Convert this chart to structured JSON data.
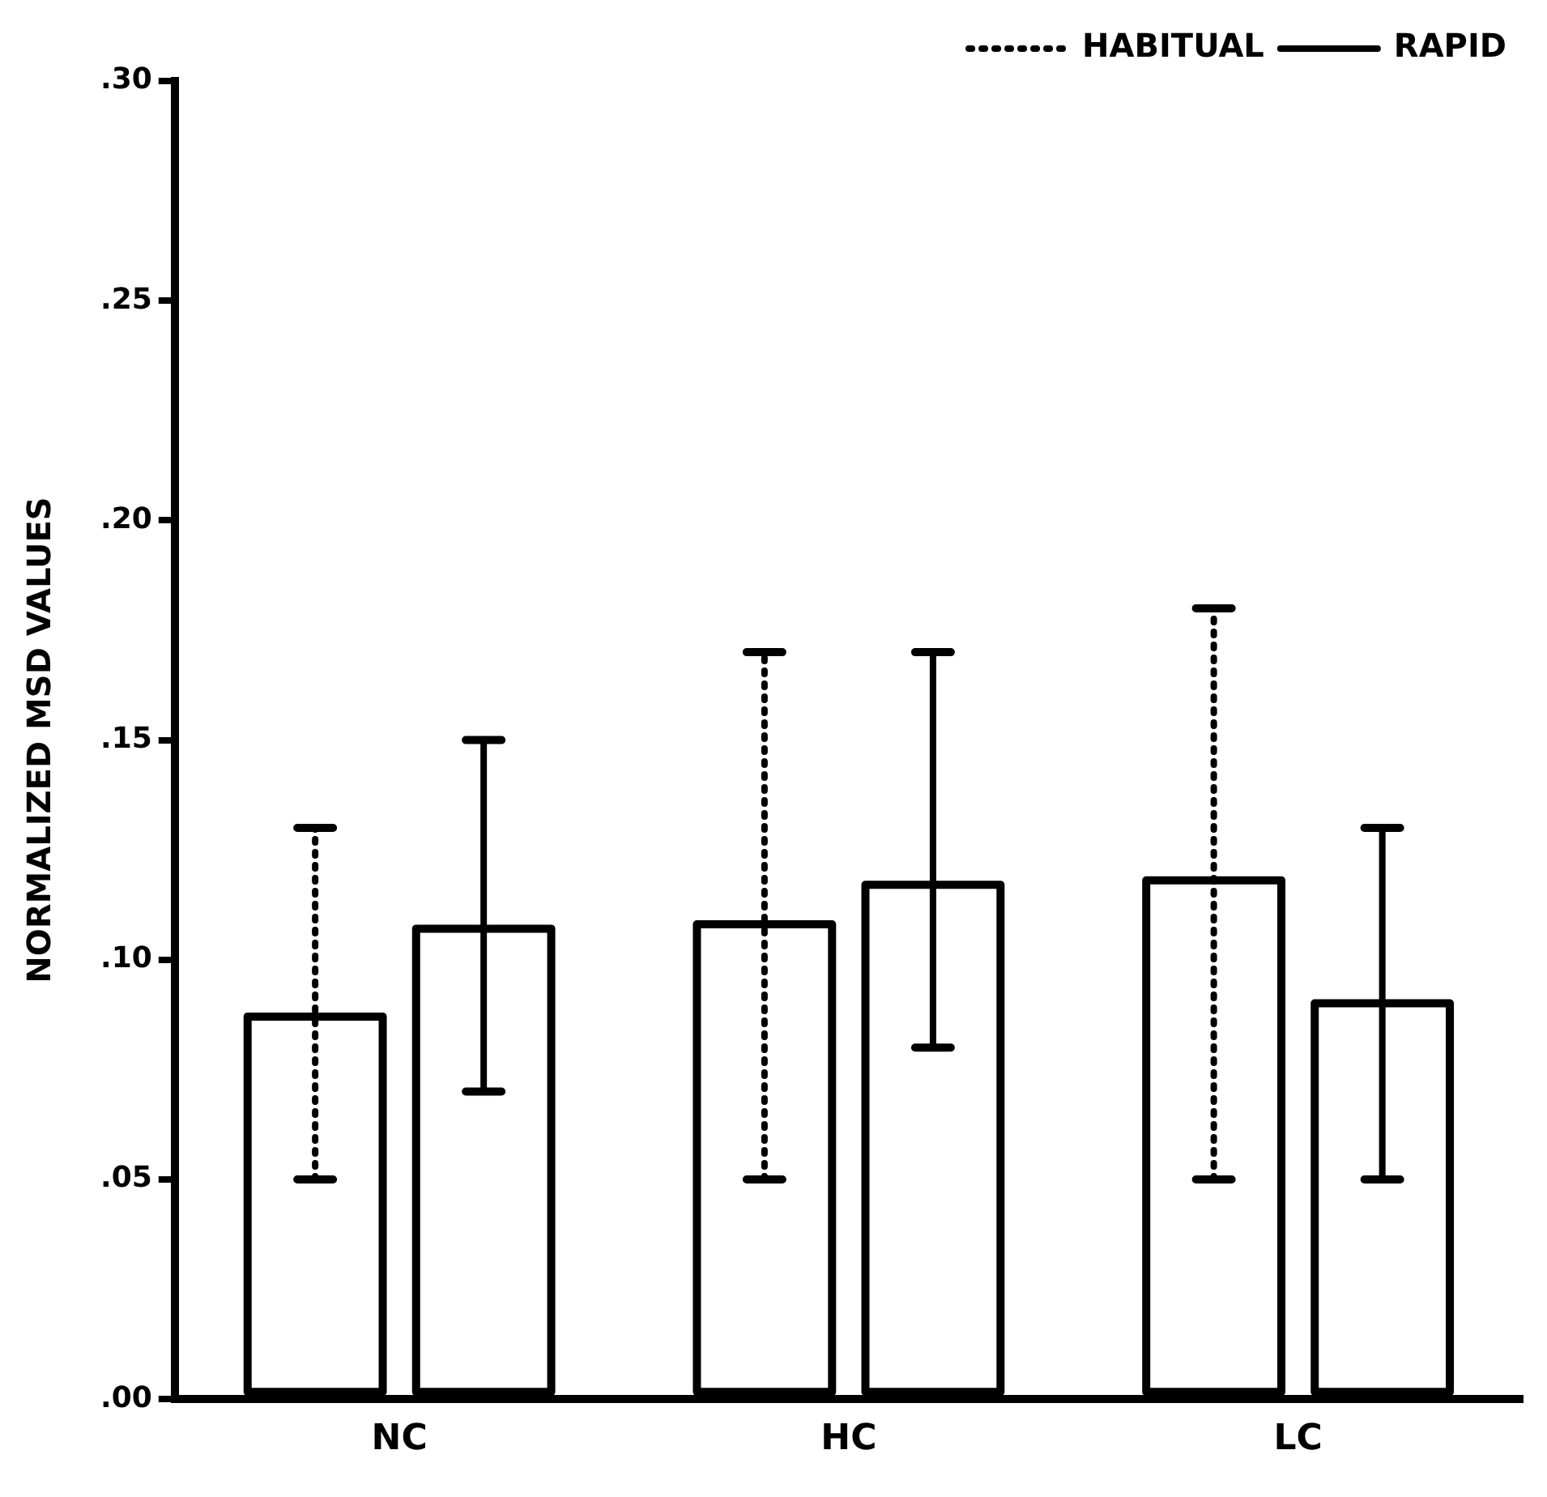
{
  "chart_data": {
    "type": "bar",
    "ylabel": "NORMALIZED MSD VALUES",
    "categories": [
      "NC",
      "HC",
      "LC"
    ],
    "series": [
      {
        "name": "HABITUAL",
        "color": "#000000",
        "line_style": "dotted",
        "values": [
          0.088,
          0.109,
          0.119
        ],
        "errors": [
          [
            0.05,
            0.13
          ],
          [
            0.05,
            0.17
          ],
          [
            0.05,
            0.18
          ]
        ]
      },
      {
        "name": "RAPID",
        "color": "#000000",
        "line_style": "solid",
        "values": [
          0.108,
          0.118,
          0.091
        ],
        "errors": [
          [
            0.07,
            0.15
          ],
          [
            0.08,
            0.17
          ],
          [
            0.05,
            0.13
          ]
        ]
      }
    ],
    "ylim": [
      0,
      0.3
    ],
    "yticks": [
      {
        "value": 0,
        "label": ".00"
      },
      {
        "value": 0.05,
        "label": ".05"
      },
      {
        "value": 0.1,
        "label": ".10"
      },
      {
        "value": 0.15,
        "label": ".15"
      },
      {
        "value": 0.2,
        "label": ".20"
      },
      {
        "value": 0.25,
        "label": ".25"
      },
      {
        "value": 0.3,
        "label": ".30"
      }
    ],
    "grid": false,
    "legend": "top right"
  }
}
